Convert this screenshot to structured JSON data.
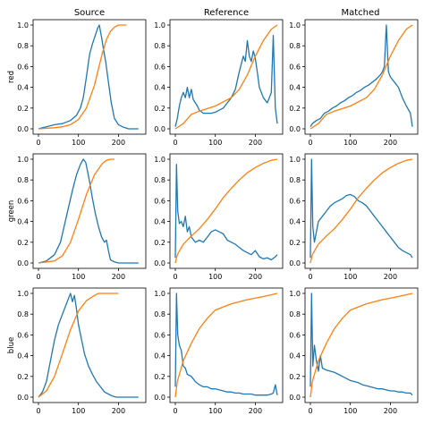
{
  "chart_data": {
    "type": "line",
    "layout": "3x3 grid of small multiples (histogram + cumulative distribution per channel)",
    "columns": [
      "Source",
      "Reference",
      "Matched"
    ],
    "rows": [
      "red",
      "green",
      "blue"
    ],
    "xlim": [
      0,
      255
    ],
    "ylim": [
      0,
      1
    ],
    "xticks": [
      0,
      100,
      200
    ],
    "yticks": [
      0.0,
      0.2,
      0.4,
      0.6,
      0.8,
      1.0
    ],
    "xtick_labels": [
      "0",
      "100",
      "200"
    ],
    "ytick_labels": [
      "0.0",
      "0.2",
      "0.4",
      "0.6",
      "0.8",
      "1.0"
    ],
    "series_colors": {
      "histogram": "#1f77b4",
      "cdf": "#ff7f0e"
    },
    "grid": false,
    "panels": [
      {
        "row": "red",
        "column": "Source",
        "histogram": {
          "x": [
            0,
            10,
            20,
            40,
            60,
            80,
            95,
            105,
            112,
            120,
            128,
            135,
            142,
            148,
            152,
            155,
            158,
            162,
            168,
            175,
            182,
            190,
            200,
            210,
            225,
            240,
            250
          ],
          "y": [
            0.0,
            0.01,
            0.02,
            0.04,
            0.05,
            0.08,
            0.13,
            0.2,
            0.3,
            0.5,
            0.72,
            0.82,
            0.9,
            0.97,
            1.0,
            0.94,
            0.88,
            0.78,
            0.65,
            0.45,
            0.25,
            0.1,
            0.04,
            0.02,
            0.0,
            0.0,
            0.0
          ]
        },
        "cdf": {
          "x": [
            0,
            40,
            60,
            80,
            100,
            120,
            140,
            150,
            160,
            170,
            180,
            190,
            200,
            210,
            220
          ],
          "y": [
            0,
            0.01,
            0.02,
            0.04,
            0.09,
            0.2,
            0.42,
            0.58,
            0.73,
            0.86,
            0.94,
            0.98,
            1.0,
            1.0,
            1.0
          ]
        }
      },
      {
        "row": "red",
        "column": "Reference",
        "histogram": {
          "x": [
            0,
            5,
            10,
            15,
            20,
            25,
            30,
            35,
            40,
            45,
            50,
            55,
            60,
            70,
            80,
            90,
            100,
            110,
            120,
            130,
            140,
            150,
            160,
            170,
            175,
            180,
            185,
            190,
            195,
            200,
            205,
            210,
            220,
            230,
            235,
            240,
            245,
            250,
            255
          ],
          "y": [
            0.02,
            0.1,
            0.22,
            0.3,
            0.35,
            0.3,
            0.4,
            0.3,
            0.38,
            0.28,
            0.25,
            0.22,
            0.18,
            0.15,
            0.15,
            0.15,
            0.16,
            0.18,
            0.2,
            0.25,
            0.3,
            0.38,
            0.55,
            0.7,
            0.65,
            0.85,
            0.7,
            0.65,
            0.75,
            0.68,
            0.55,
            0.4,
            0.3,
            0.25,
            0.3,
            0.35,
            0.9,
            0.2,
            0.05
          ]
        },
        "cdf": {
          "x": [
            0,
            20,
            40,
            60,
            100,
            140,
            160,
            180,
            200,
            220,
            240,
            255
          ],
          "y": [
            0,
            0.05,
            0.14,
            0.17,
            0.22,
            0.3,
            0.38,
            0.52,
            0.7,
            0.85,
            0.96,
            1.0
          ]
        }
      },
      {
        "row": "red",
        "column": "Matched",
        "histogram": {
          "x": [
            0,
            5,
            15,
            25,
            35,
            45,
            55,
            65,
            75,
            85,
            95,
            105,
            115,
            125,
            135,
            145,
            155,
            165,
            175,
            180,
            185,
            190,
            195,
            200,
            210,
            220,
            230,
            240,
            250,
            255
          ],
          "y": [
            0.02,
            0.05,
            0.08,
            0.1,
            0.15,
            0.17,
            0.2,
            0.22,
            0.25,
            0.27,
            0.3,
            0.32,
            0.35,
            0.37,
            0.4,
            0.42,
            0.45,
            0.48,
            0.52,
            0.55,
            0.6,
            1.0,
            0.55,
            0.5,
            0.45,
            0.4,
            0.3,
            0.22,
            0.15,
            0.02
          ]
        },
        "cdf": {
          "x": [
            0,
            20,
            40,
            60,
            100,
            140,
            160,
            180,
            200,
            220,
            240,
            255
          ],
          "y": [
            0,
            0.05,
            0.14,
            0.17,
            0.22,
            0.3,
            0.38,
            0.52,
            0.7,
            0.85,
            0.96,
            1.0
          ]
        }
      },
      {
        "row": "green",
        "column": "Source",
        "histogram": {
          "x": [
            0,
            20,
            40,
            55,
            70,
            85,
            95,
            105,
            112,
            118,
            122,
            128,
            135,
            142,
            150,
            158,
            165,
            170,
            175,
            180,
            190,
            200,
            210,
            225,
            240,
            250
          ],
          "y": [
            0.0,
            0.02,
            0.08,
            0.2,
            0.45,
            0.7,
            0.85,
            0.95,
            1.0,
            0.97,
            0.9,
            0.78,
            0.62,
            0.48,
            0.35,
            0.25,
            0.2,
            0.22,
            0.12,
            0.03,
            0.01,
            0.0,
            0.0,
            0.0,
            0.0,
            0.0
          ]
        },
        "cdf": {
          "x": [
            0,
            40,
            60,
            80,
            100,
            120,
            140,
            160,
            170,
            180,
            190
          ],
          "y": [
            0,
            0.02,
            0.07,
            0.2,
            0.42,
            0.66,
            0.85,
            0.96,
            0.99,
            1.0,
            1.0
          ]
        }
      },
      {
        "row": "green",
        "column": "Reference",
        "histogram": {
          "x": [
            0,
            3,
            6,
            10,
            15,
            20,
            25,
            30,
            35,
            40,
            50,
            60,
            70,
            80,
            90,
            100,
            110,
            120,
            130,
            140,
            150,
            160,
            170,
            180,
            190,
            200,
            210,
            220,
            230,
            240,
            250,
            255
          ],
          "y": [
            0.05,
            0.95,
            0.5,
            0.38,
            0.4,
            0.35,
            0.45,
            0.3,
            0.35,
            0.25,
            0.2,
            0.22,
            0.2,
            0.25,
            0.3,
            0.32,
            0.3,
            0.28,
            0.22,
            0.2,
            0.18,
            0.15,
            0.12,
            0.1,
            0.08,
            0.12,
            0.06,
            0.04,
            0.05,
            0.03,
            0.06,
            0.08
          ]
        },
        "cdf": {
          "x": [
            0,
            5,
            20,
            40,
            60,
            80,
            100,
            120,
            140,
            160,
            180,
            200,
            220,
            240,
            255
          ],
          "y": [
            0,
            0.08,
            0.18,
            0.26,
            0.33,
            0.42,
            0.52,
            0.63,
            0.72,
            0.8,
            0.87,
            0.92,
            0.96,
            0.99,
            1.0
          ]
        }
      },
      {
        "row": "green",
        "column": "Matched",
        "histogram": {
          "x": [
            0,
            3,
            6,
            10,
            15,
            20,
            30,
            40,
            50,
            60,
            70,
            80,
            90,
            100,
            110,
            120,
            130,
            140,
            150,
            160,
            170,
            180,
            190,
            200,
            210,
            220,
            230,
            240,
            250,
            255
          ],
          "y": [
            0.05,
            1.0,
            0.35,
            0.2,
            0.3,
            0.4,
            0.45,
            0.5,
            0.55,
            0.58,
            0.6,
            0.62,
            0.65,
            0.66,
            0.64,
            0.6,
            0.58,
            0.55,
            0.5,
            0.45,
            0.4,
            0.35,
            0.3,
            0.25,
            0.2,
            0.15,
            0.12,
            0.1,
            0.08,
            0.05
          ]
        },
        "cdf": {
          "x": [
            0,
            5,
            20,
            40,
            60,
            80,
            100,
            120,
            140,
            160,
            180,
            200,
            220,
            240,
            255
          ],
          "y": [
            0,
            0.08,
            0.18,
            0.26,
            0.33,
            0.42,
            0.52,
            0.63,
            0.72,
            0.8,
            0.87,
            0.92,
            0.96,
            0.99,
            1.0
          ]
        }
      },
      {
        "row": "blue",
        "column": "Source",
        "histogram": {
          "x": [
            0,
            10,
            20,
            30,
            40,
            50,
            60,
            68,
            75,
            80,
            85,
            90,
            95,
            100,
            108,
            115,
            125,
            135,
            145,
            155,
            165,
            175,
            185,
            195,
            210,
            225,
            240,
            250
          ],
          "y": [
            0.0,
            0.05,
            0.15,
            0.35,
            0.55,
            0.7,
            0.8,
            0.88,
            0.95,
            1.0,
            0.92,
            0.98,
            0.85,
            0.7,
            0.55,
            0.42,
            0.3,
            0.22,
            0.15,
            0.1,
            0.05,
            0.03,
            0.01,
            0.0,
            0.0,
            0.0,
            0.0,
            0.0
          ]
        },
        "cdf": {
          "x": [
            0,
            20,
            40,
            60,
            80,
            100,
            120,
            140,
            150,
            160,
            180,
            200
          ],
          "y": [
            0,
            0.06,
            0.2,
            0.42,
            0.65,
            0.83,
            0.93,
            0.98,
            1.0,
            1.0,
            1.0,
            1.0
          ]
        }
      },
      {
        "row": "blue",
        "column": "Reference",
        "histogram": {
          "x": [
            0,
            3,
            6,
            10,
            15,
            20,
            25,
            30,
            40,
            50,
            60,
            70,
            80,
            90,
            100,
            110,
            120,
            130,
            140,
            150,
            160,
            170,
            180,
            190,
            200,
            210,
            220,
            230,
            240,
            245,
            250,
            255
          ],
          "y": [
            0.1,
            1.0,
            0.6,
            0.5,
            0.45,
            0.3,
            0.28,
            0.22,
            0.2,
            0.15,
            0.12,
            0.1,
            0.1,
            0.08,
            0.08,
            0.07,
            0.06,
            0.05,
            0.05,
            0.04,
            0.04,
            0.03,
            0.03,
            0.03,
            0.02,
            0.02,
            0.02,
            0.02,
            0.03,
            0.04,
            0.12,
            0.02
          ]
        },
        "cdf": {
          "x": [
            0,
            5,
            20,
            40,
            60,
            80,
            100,
            140,
            180,
            220,
            255
          ],
          "y": [
            0,
            0.15,
            0.35,
            0.52,
            0.66,
            0.76,
            0.84,
            0.9,
            0.94,
            0.97,
            1.0
          ]
        }
      },
      {
        "row": "blue",
        "column": "Matched",
        "histogram": {
          "x": [
            0,
            3,
            6,
            10,
            15,
            20,
            25,
            30,
            40,
            50,
            60,
            70,
            80,
            90,
            100,
            110,
            120,
            130,
            140,
            150,
            160,
            170,
            180,
            190,
            200,
            210,
            220,
            230,
            240,
            250,
            255
          ],
          "y": [
            0.1,
            1.0,
            0.3,
            0.5,
            0.35,
            0.25,
            0.4,
            0.28,
            0.26,
            0.25,
            0.24,
            0.22,
            0.2,
            0.18,
            0.16,
            0.15,
            0.14,
            0.12,
            0.11,
            0.1,
            0.09,
            0.08,
            0.08,
            0.07,
            0.06,
            0.06,
            0.05,
            0.05,
            0.04,
            0.04,
            0.02
          ]
        },
        "cdf": {
          "x": [
            0,
            5,
            20,
            40,
            60,
            80,
            100,
            140,
            180,
            220,
            255
          ],
          "y": [
            0,
            0.15,
            0.35,
            0.52,
            0.66,
            0.76,
            0.84,
            0.9,
            0.94,
            0.97,
            1.0
          ]
        }
      }
    ]
  }
}
